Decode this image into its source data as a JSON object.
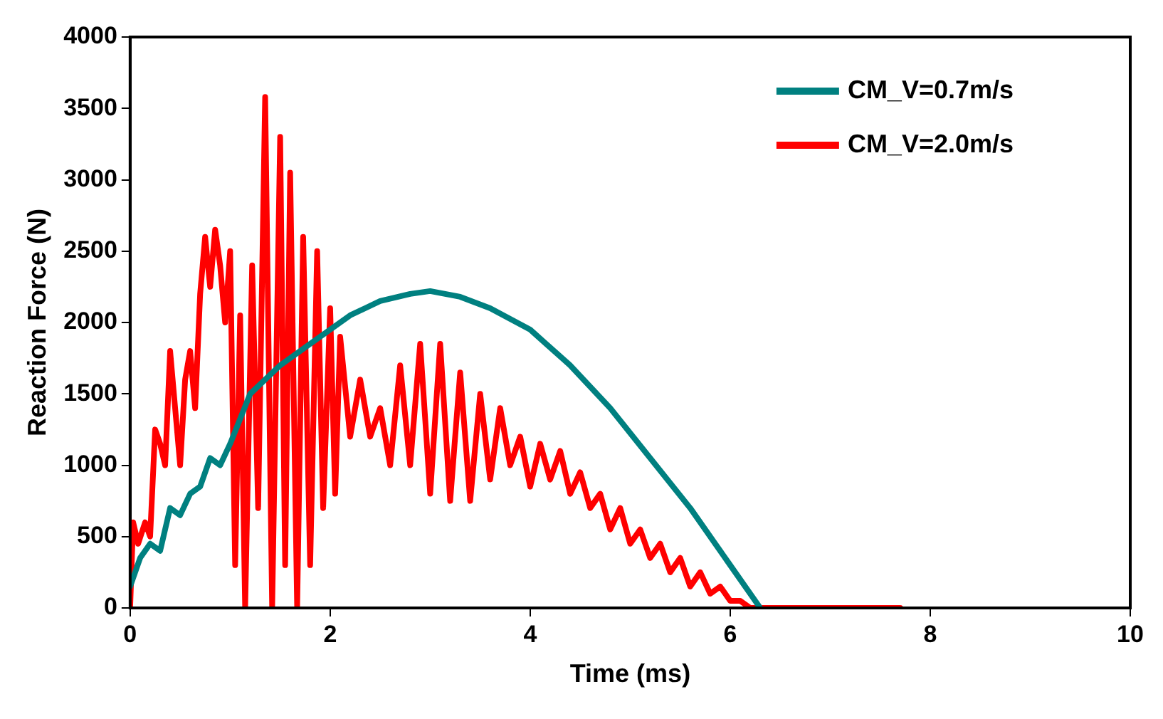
{
  "chart_data": {
    "type": "line",
    "xlabel": "Time (ms)",
    "ylabel": "Reaction Force (N)",
    "xlim": [
      0,
      10
    ],
    "xticks": [
      0,
      2,
      4,
      6,
      8,
      10
    ],
    "ylim": [
      0,
      4000
    ],
    "yticks": [
      0,
      500,
      1000,
      1500,
      2000,
      2500,
      3000,
      3500,
      4000
    ],
    "grid": false,
    "legend": "top right",
    "marker": "none",
    "line_style": "solid",
    "series": [
      {
        "name": "CM_V=0.7m/s",
        "color": "#008080",
        "x": [
          0,
          0.1,
          0.2,
          0.3,
          0.4,
          0.5,
          0.6,
          0.7,
          0.8,
          0.9,
          1.0,
          1.2,
          1.5,
          1.8,
          2.0,
          2.2,
          2.5,
          2.8,
          3.0,
          3.3,
          3.6,
          4.0,
          4.4,
          4.8,
          5.2,
          5.6,
          6.0,
          6.3
        ],
        "values": [
          150,
          350,
          450,
          400,
          700,
          650,
          800,
          850,
          1050,
          1000,
          1150,
          1500,
          1700,
          1850,
          1950,
          2050,
          2150,
          2200,
          2220,
          2180,
          2100,
          1950,
          1700,
          1400,
          1050,
          700,
          300,
          0
        ]
      },
      {
        "name": "CM_V=2.0m/s",
        "color": "#ff0000",
        "x": [
          0,
          0.03,
          0.08,
          0.15,
          0.2,
          0.25,
          0.3,
          0.35,
          0.4,
          0.45,
          0.5,
          0.55,
          0.6,
          0.65,
          0.7,
          0.75,
          0.8,
          0.85,
          0.9,
          0.95,
          1.0,
          1.05,
          1.1,
          1.15,
          1.22,
          1.28,
          1.35,
          1.42,
          1.5,
          1.55,
          1.6,
          1.67,
          1.73,
          1.8,
          1.87,
          1.93,
          2.0,
          2.05,
          2.1,
          2.2,
          2.3,
          2.4,
          2.5,
          2.6,
          2.7,
          2.8,
          2.9,
          3.0,
          3.1,
          3.2,
          3.3,
          3.4,
          3.5,
          3.6,
          3.7,
          3.8,
          3.9,
          4.0,
          4.1,
          4.2,
          4.3,
          4.4,
          4.5,
          4.6,
          4.7,
          4.8,
          4.9,
          5.0,
          5.1,
          5.2,
          5.3,
          5.4,
          5.5,
          5.6,
          5.7,
          5.8,
          5.9,
          6.0,
          6.1,
          6.2,
          7.0,
          7.7
        ],
        "values": [
          0,
          600,
          450,
          600,
          500,
          1250,
          1150,
          1000,
          1800,
          1400,
          1000,
          1600,
          1800,
          1400,
          2200,
          2600,
          2250,
          2650,
          2400,
          2000,
          2500,
          300,
          2050,
          0,
          2400,
          700,
          3580,
          0,
          3300,
          300,
          3050,
          0,
          2600,
          300,
          2500,
          700,
          2100,
          800,
          1900,
          1200,
          1600,
          1200,
          1400,
          1000,
          1700,
          1000,
          1850,
          800,
          1850,
          750,
          1650,
          750,
          1500,
          900,
          1400,
          1000,
          1200,
          850,
          1150,
          900,
          1100,
          800,
          950,
          700,
          800,
          550,
          700,
          450,
          550,
          350,
          450,
          250,
          350,
          150,
          250,
          100,
          150,
          50,
          50,
          0,
          0,
          0
        ]
      }
    ]
  }
}
